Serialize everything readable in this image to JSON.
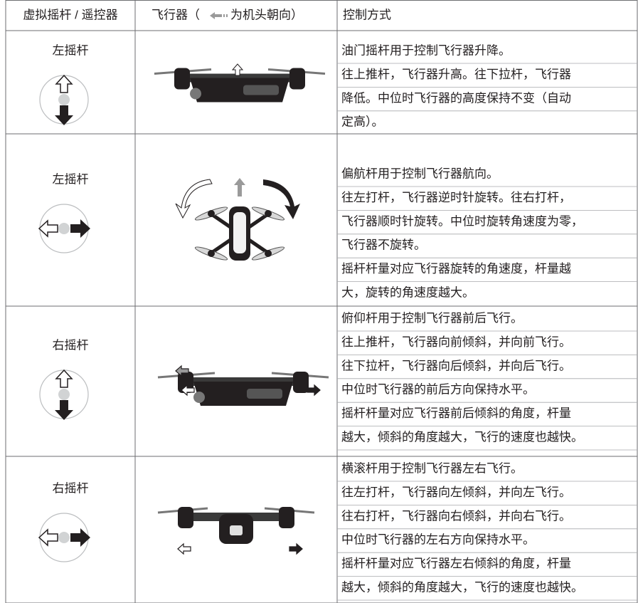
{
  "header": [
    "虚拟摇杆 / 遥控器",
    "飞行器（",
    "为机头朝向）",
    "控制方式"
  ],
  "rows": [
    {
      "stick": "左摇杆",
      "lines": [
        "油门摇杆用于控制飞行器升降。",
        "往上推杆，飞行器升高。往下拉杆，飞行器",
        "降低。中位时飞行器的高度保持不变（自动",
        "定高）。"
      ]
    },
    {
      "stick": "左摇杆",
      "lines": [
        "偏航杆用于控制飞行器航向。",
        "往左打杆，飞行器逆时针旋转。往右打杆，",
        "飞行器顺时针旋转。中位时旋转角速度为零，",
        "飞行器不旋转。",
        "摇杆杆量对应飞行器旋转的角速度，杆量越",
        "大，旋转的角速度越大。"
      ]
    },
    {
      "stick": "右摇杆",
      "lines": [
        "俯仰杆用于控制飞行器前后飞行。",
        "往上推杆，飞行器向前倾斜，并向前飞行。",
        "往下拉杆，飞行器向后倾斜，并向后飞行。",
        "中位时飞行器的前后方向保持水平。",
        "摇杆杆量对应飞行器前后倾斜的角度，杆量",
        "越大，倾斜的角度越大，飞行的速度也越快。"
      ]
    },
    {
      "stick": "右摇杆",
      "lines": [
        "横滚杆用于控制飞行器左右飞行。",
        "往左打杆，飞行器向左倾斜，并向左飞行。",
        "往右打杆，飞行器向右倾斜，并向右飞行。",
        "中位时飞行器的左右方向保持水平。",
        "摇杆杆量对应飞行器左右倾斜的角度，杆量",
        "越大，倾斜的角度越大，飞行的速度也越快。"
      ]
    }
  ]
}
